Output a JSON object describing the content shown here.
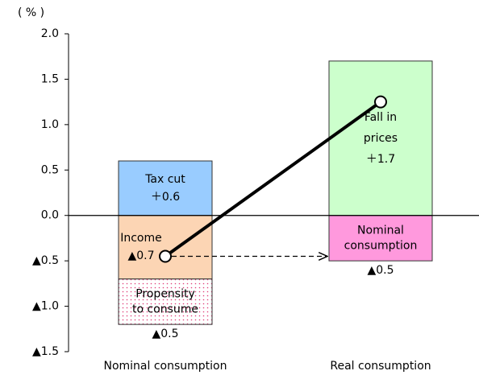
{
  "chart_data": {
    "type": "stacked-bar",
    "unit_label": "( % )",
    "categories": [
      "Nominal consumption",
      "Real consumption"
    ],
    "series": [
      {
        "name": [
          "Tax cut"
        ],
        "color": "#99ccff",
        "values": [
          0.6,
          null
        ],
        "value_labels": [
          "＋0.6",
          null
        ]
      },
      {
        "name": [
          "Income"
        ],
        "color": "#fcd5b4",
        "values": [
          -0.7,
          null
        ],
        "value_labels": [
          "▲0.7",
          null
        ]
      },
      {
        "name": [
          "Propensity",
          "to consume"
        ],
        "color": "#ff6699",
        "pattern": "dots",
        "values": [
          -0.5,
          null
        ],
        "value_labels": [
          "▲0.5",
          null
        ]
      },
      {
        "name": [
          "Fall in",
          "prices"
        ],
        "color": "#ccffcc",
        "values": [
          null,
          1.7
        ],
        "value_labels": [
          null,
          "＋1.7"
        ]
      },
      {
        "name": [
          "Nominal",
          "consumption"
        ],
        "color": "#ff99dd",
        "values": [
          null,
          -0.5
        ],
        "value_labels": [
          null,
          "▲0.5"
        ]
      }
    ],
    "line": {
      "color": "#000000",
      "values": [
        -0.45,
        1.25
      ]
    },
    "ylim": [
      -1.5,
      2.0
    ],
    "yticks": [
      {
        "value": 2,
        "label": "2.0"
      },
      1.5,
      {
        "value": 1,
        "label": "1.0"
      },
      0.5,
      {
        "value": 0,
        "label": "0.0"
      },
      {
        "value": -0.5,
        "label": "▲0.5"
      },
      {
        "value": -1,
        "label": "▲1.0"
      },
      {
        "value": -1.5,
        "label": "▲1.5"
      }
    ],
    "grid": false
  }
}
